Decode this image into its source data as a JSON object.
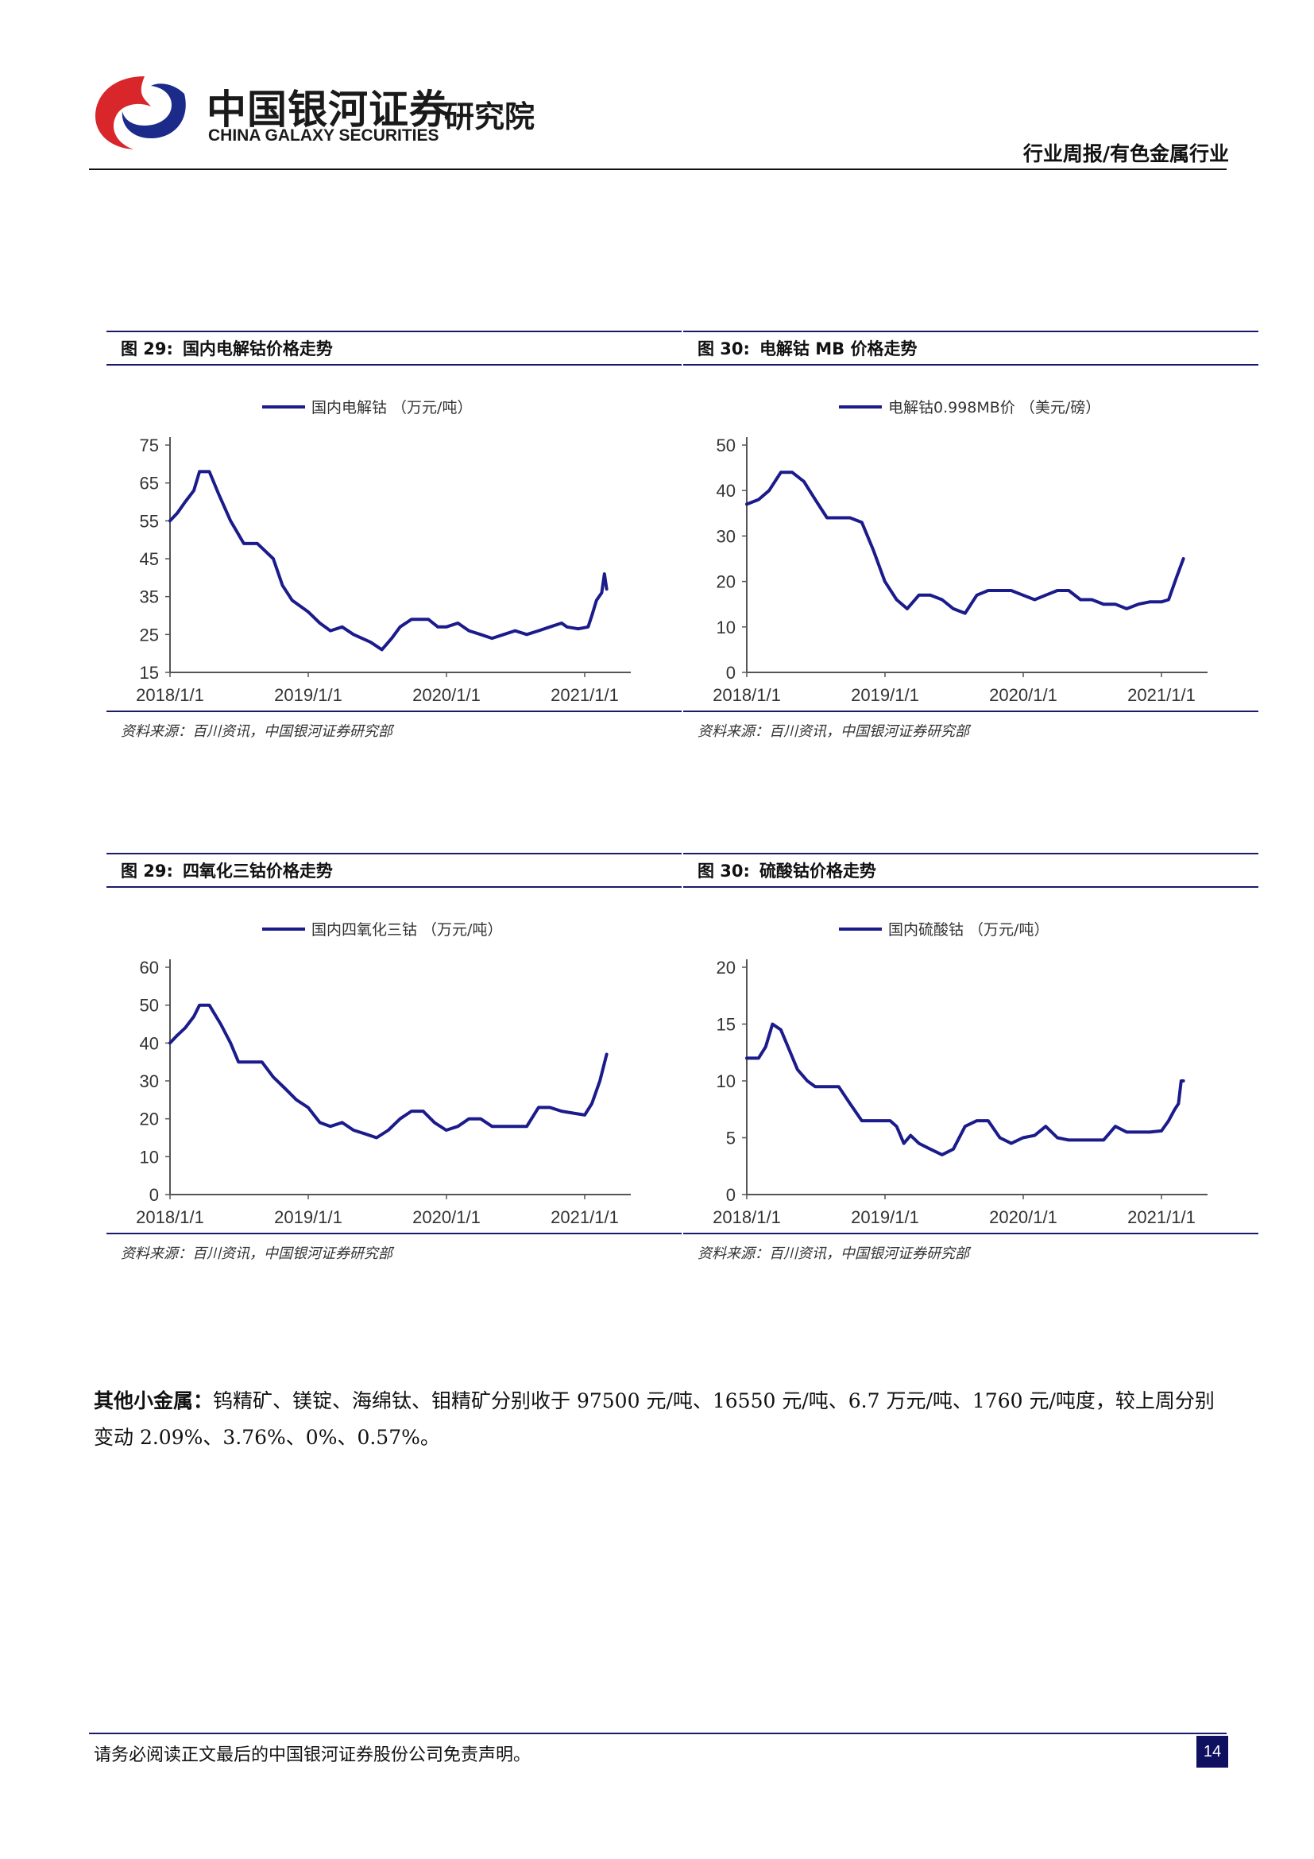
{
  "header": {
    "logo_cn": "中国银河证券",
    "logo_en": "CHINA GALAXY SECURITIES",
    "logo_institute": "研究院",
    "report_type": "行业周报/有色金属行业"
  },
  "colors": {
    "line": "#1b1b8c",
    "rule": "#1b1b6e",
    "logo_red": "#d8262b"
  },
  "figures": [
    {
      "label": "图 29:",
      "title": "国内电解钴价格走势",
      "source": "资料来源：百川资讯，中国银河证券研究部"
    },
    {
      "label": "图 30:",
      "title": "电解钴 MB 价格走势",
      "source": "资料来源：百川资讯，中国银河证券研究部"
    },
    {
      "label": "图 29:",
      "title": "四氧化三钴价格走势",
      "source": "资料来源：百川资讯，中国银河证券研究部"
    },
    {
      "label": "图 30:",
      "title": "硫酸钴价格走势",
      "source": "资料来源：百川资讯，中国银河证券研究部"
    }
  ],
  "chart_data": [
    {
      "type": "line",
      "title": "",
      "series": [
        {
          "name": "国内电解钴 （万元/吨）",
          "x": [
            "2018-01-01",
            "2018-01-20",
            "2018-02-10",
            "2018-03-05",
            "2018-03-20",
            "2018-04-15",
            "2018-05-10",
            "2018-06-10",
            "2018-07-15",
            "2018-08-20",
            "2018-10-01",
            "2018-10-25",
            "2018-11-20",
            "2019-01-01",
            "2019-02-01",
            "2019-03-01",
            "2019-04-01",
            "2019-05-01",
            "2019-06-15",
            "2019-07-15",
            "2019-08-10",
            "2019-09-01",
            "2019-10-01",
            "2019-11-15",
            "2019-12-10",
            "2020-01-01",
            "2020-02-01",
            "2020-03-01",
            "2020-04-01",
            "2020-05-01",
            "2020-06-01",
            "2020-07-01",
            "2020-08-01",
            "2020-09-01",
            "2020-10-01",
            "2020-11-01",
            "2020-11-15",
            "2020-12-15",
            "2021-01-10",
            "2021-01-20",
            "2021-02-01",
            "2021-02-15",
            "2021-02-22",
            "2021-02-28"
          ],
          "y": [
            55,
            57,
            60,
            63,
            68,
            68,
            62,
            55,
            49,
            49,
            45,
            38,
            34,
            31,
            28,
            26,
            27,
            25,
            23,
            21,
            24,
            27,
            29,
            29,
            27,
            27,
            28,
            26,
            25,
            24,
            25,
            26,
            25,
            26,
            27,
            28,
            27,
            26.5,
            27,
            30,
            34,
            36,
            41,
            37
          ]
        }
      ],
      "xlabel": "",
      "ylabel": "",
      "xticks": [
        "2018/1/1",
        "2019/1/1",
        "2020/1/1",
        "2021/1/1"
      ],
      "yticks": [
        15,
        25,
        35,
        45,
        55,
        65,
        75
      ],
      "ylim": [
        15,
        75
      ],
      "grid": false,
      "legend": "top-center"
    },
    {
      "type": "line",
      "title": "",
      "series": [
        {
          "name": "电解钴0.998MB价 （美元/磅）",
          "x": [
            "2018-01-01",
            "2018-02-01",
            "2018-03-01",
            "2018-04-01",
            "2018-05-01",
            "2018-06-01",
            "2018-07-01",
            "2018-08-01",
            "2018-09-01",
            "2018-10-01",
            "2018-11-01",
            "2018-12-01",
            "2019-01-01",
            "2019-02-01",
            "2019-03-01",
            "2019-04-01",
            "2019-05-01",
            "2019-06-01",
            "2019-07-01",
            "2019-08-01",
            "2019-09-01",
            "2019-10-01",
            "2019-11-01",
            "2019-12-01",
            "2020-01-01",
            "2020-02-01",
            "2020-03-01",
            "2020-04-01",
            "2020-05-01",
            "2020-06-01",
            "2020-07-01",
            "2020-08-01",
            "2020-09-01",
            "2020-10-01",
            "2020-11-01",
            "2020-12-01",
            "2021-01-01",
            "2021-01-20",
            "2021-02-10",
            "2021-02-28"
          ],
          "y": [
            37,
            38,
            40,
            44,
            44,
            42,
            38,
            34,
            34,
            34,
            33,
            27,
            20,
            16,
            14,
            17,
            17,
            16,
            14,
            13,
            17,
            18,
            18,
            18,
            17,
            16,
            17,
            18,
            18,
            16,
            16,
            15,
            15,
            14,
            15,
            15.5,
            15.5,
            16,
            21,
            25
          ]
        }
      ],
      "xlabel": "",
      "ylabel": "",
      "xticks": [
        "2018/1/1",
        "2019/1/1",
        "2020/1/1",
        "2021/1/1"
      ],
      "yticks": [
        0,
        10,
        20,
        30,
        40,
        50
      ],
      "ylim": [
        0,
        50
      ],
      "grid": false,
      "legend": "top-center"
    },
    {
      "type": "line",
      "title": "",
      "series": [
        {
          "name": "国内四氧化三钴 （万元/吨）",
          "x": [
            "2018-01-01",
            "2018-01-20",
            "2018-02-10",
            "2018-03-05",
            "2018-03-20",
            "2018-04-15",
            "2018-05-15",
            "2018-06-10",
            "2018-07-01",
            "2018-08-01",
            "2018-09-01",
            "2018-10-01",
            "2018-11-01",
            "2018-12-01",
            "2019-01-01",
            "2019-02-01",
            "2019-03-01",
            "2019-04-01",
            "2019-05-01",
            "2019-06-01",
            "2019-07-01",
            "2019-08-01",
            "2019-09-01",
            "2019-10-01",
            "2019-11-01",
            "2019-12-01",
            "2020-01-01",
            "2020-02-01",
            "2020-03-01",
            "2020-04-01",
            "2020-05-01",
            "2020-06-01",
            "2020-07-01",
            "2020-08-01",
            "2020-09-01",
            "2020-10-01",
            "2020-11-01",
            "2020-12-01",
            "2021-01-01",
            "2021-01-20",
            "2021-02-10",
            "2021-02-28"
          ],
          "y": [
            40,
            42,
            44,
            47,
            50,
            50,
            45,
            40,
            35,
            35,
            35,
            31,
            28,
            25,
            23,
            19,
            18,
            19,
            17,
            16,
            15,
            17,
            20,
            22,
            22,
            19,
            17,
            18,
            20,
            20,
            18,
            18,
            18,
            18,
            23,
            23,
            22,
            21.5,
            21,
            24,
            30,
            37
          ]
        }
      ],
      "xlabel": "",
      "ylabel": "",
      "xticks": [
        "2018/1/1",
        "2019/1/1",
        "2020/1/1",
        "2021/1/1"
      ],
      "yticks": [
        0,
        10,
        20,
        30,
        40,
        50,
        60
      ],
      "ylim": [
        0,
        60
      ],
      "grid": false,
      "legend": "top-center"
    },
    {
      "type": "line",
      "title": "",
      "series": [
        {
          "name": "国内硫酸钴 （万元/吨）",
          "x": [
            "2018-01-01",
            "2018-02-01",
            "2018-02-20",
            "2018-03-10",
            "2018-04-01",
            "2018-04-20",
            "2018-05-15",
            "2018-06-10",
            "2018-07-01",
            "2018-08-01",
            "2018-09-01",
            "2018-10-01",
            "2018-11-01",
            "2018-12-01",
            "2019-01-01",
            "2019-01-15",
            "2019-02-01",
            "2019-02-20",
            "2019-03-10",
            "2019-04-01",
            "2019-05-01",
            "2019-06-01",
            "2019-07-01",
            "2019-08-01",
            "2019-09-01",
            "2019-10-01",
            "2019-11-01",
            "2019-12-01",
            "2020-01-01",
            "2020-02-01",
            "2020-03-01",
            "2020-04-01",
            "2020-05-01",
            "2020-06-01",
            "2020-07-01",
            "2020-08-01",
            "2020-09-01",
            "2020-10-01",
            "2020-11-01",
            "2020-12-01",
            "2021-01-01",
            "2021-01-20",
            "2021-02-05",
            "2021-02-15",
            "2021-02-22",
            "2021-02-28"
          ],
          "y": [
            12,
            12,
            13,
            15,
            14.5,
            13,
            11,
            10,
            9.5,
            9.5,
            9.5,
            8,
            6.5,
            6.5,
            6.5,
            6.5,
            6,
            4.5,
            5.2,
            4.5,
            4,
            3.5,
            4,
            6,
            6.5,
            6.5,
            5,
            4.5,
            5,
            5.2,
            6,
            5,
            4.8,
            4.8,
            4.8,
            4.8,
            6,
            5.5,
            5.5,
            5.5,
            5.6,
            6.5,
            7.5,
            8,
            10,
            10
          ]
        }
      ],
      "xlabel": "",
      "ylabel": "",
      "xticks": [
        "2018/1/1",
        "2019/1/1",
        "2020/1/1",
        "2021/1/1"
      ],
      "yticks": [
        0,
        5,
        10,
        15,
        20
      ],
      "ylim": [
        0,
        20
      ],
      "grid": false,
      "legend": "top-center"
    }
  ],
  "paragraph": {
    "label": "其他小金属：",
    "text": "钨精矿、镁锭、海绵钛、钼精矿分别收于 97500 元/吨、16550 元/吨、6.7 万元/吨、1760 元/吨度，较上周分别变动 2.09%、3.76%、0%、0.57%。"
  },
  "footer": {
    "disclaimer": "请务必阅读正文最后的中国银河证券股份公司免责声明。",
    "page": "14"
  }
}
